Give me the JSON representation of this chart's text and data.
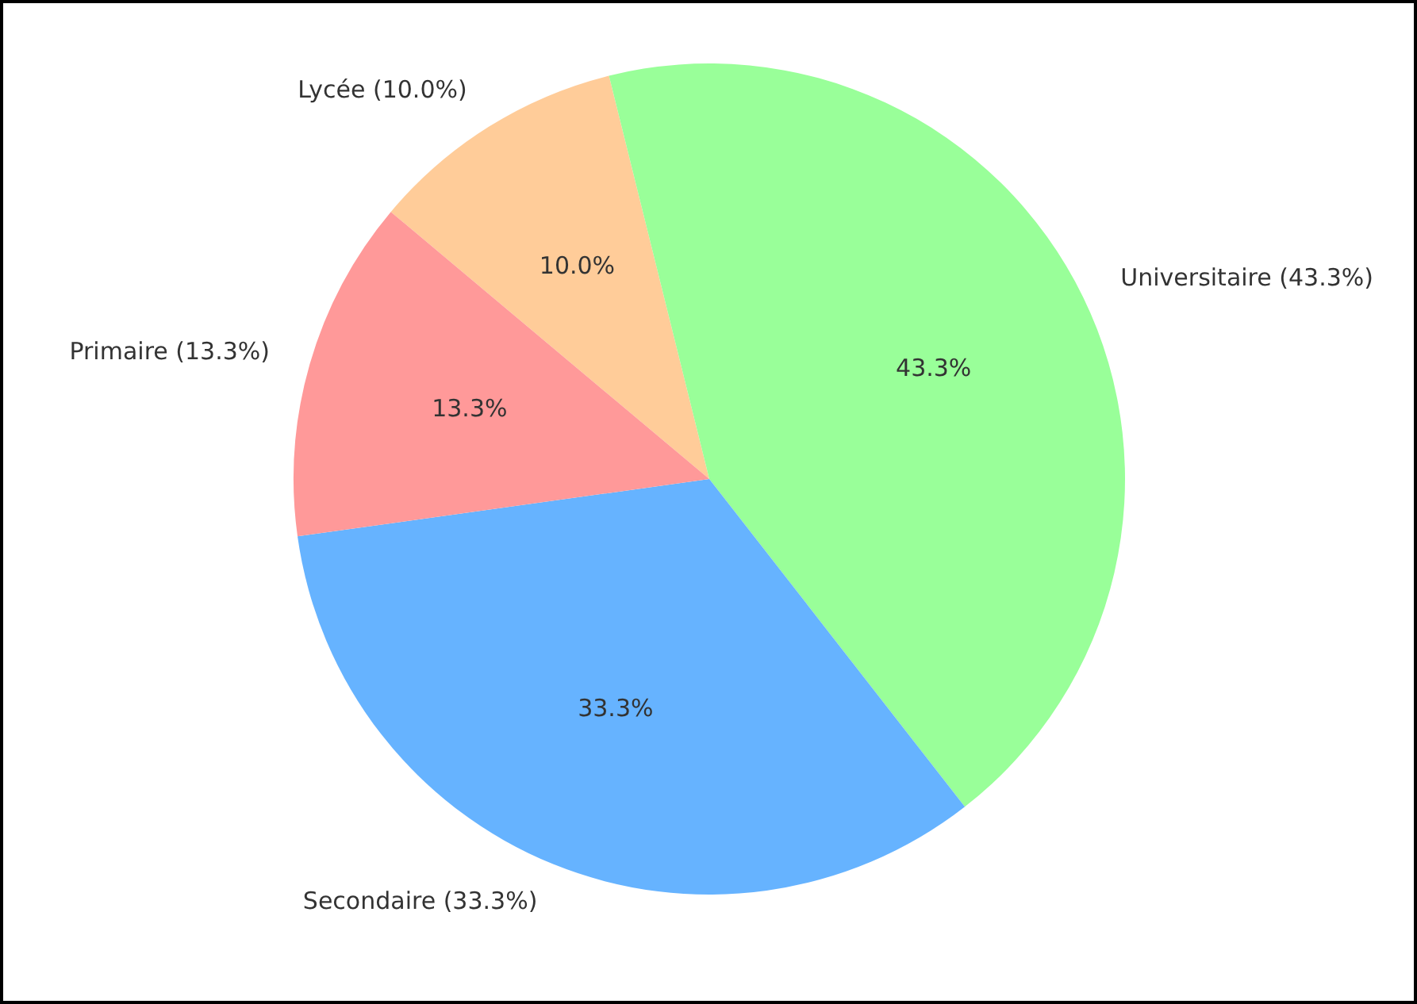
{
  "chart_data": {
    "type": "pie",
    "categories": [
      "Lycée (10.0%)",
      "Universitaire (43.3%)",
      "Secondaire (33.3%)",
      "Primaire (13.3%)"
    ],
    "values": [
      10.0,
      43.3,
      33.3,
      13.3
    ],
    "value_labels": [
      "10.0%",
      "43.3%",
      "33.3%",
      "13.3%"
    ],
    "colors": [
      "#ffcc99",
      "#99ff99",
      "#66b3ff",
      "#ff9999"
    ],
    "legend": false
  }
}
